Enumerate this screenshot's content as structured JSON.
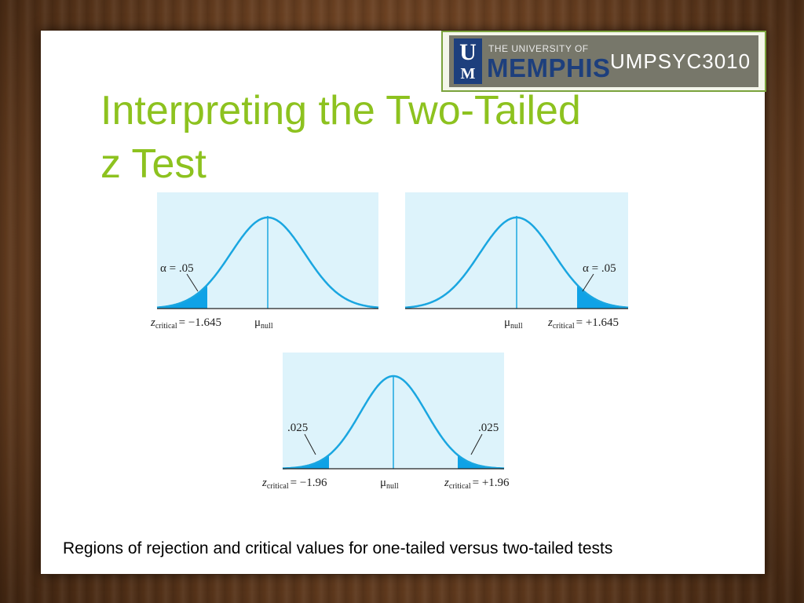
{
  "header": {
    "university_prefix": "THE UNIVERSITY OF",
    "university_name": "MEMPHIS",
    "logo_letters_top": "U",
    "logo_letters_bottom": "M",
    "course_code": "UMPSYC3010"
  },
  "slide": {
    "title_line1": "Interpreting the Two-Tailed",
    "title_line2": "z Test",
    "caption": "Regions of rejection and critical values for one-tailed versus two-tailed tests"
  },
  "figures": {
    "left_tail": {
      "alpha_label": "α = .05",
      "critical_label": "= −1.645",
      "mean_label": "μ",
      "z_symbol": "z",
      "z_subscript": "critical",
      "mean_subscript": "null"
    },
    "right_tail": {
      "alpha_label": "α = .05",
      "critical_label": "= +1.645",
      "mean_label": "μ",
      "z_symbol": "z",
      "z_subscript": "critical",
      "mean_subscript": "null"
    },
    "two_tailed": {
      "left_alpha_label": ".025",
      "right_alpha_label": ".025",
      "left_critical_label": "= −1.96",
      "right_critical_label": "= +1.96",
      "mean_label": "μ",
      "z_symbol": "z",
      "z_subscript": "critical",
      "mean_subscript": "null"
    }
  },
  "colors": {
    "title": "#8dc21f",
    "curve": "#1aa6e0",
    "shade": "#0fa2e6",
    "panel_bg": "#ddf3fb",
    "badge_border": "#7aa23c"
  }
}
